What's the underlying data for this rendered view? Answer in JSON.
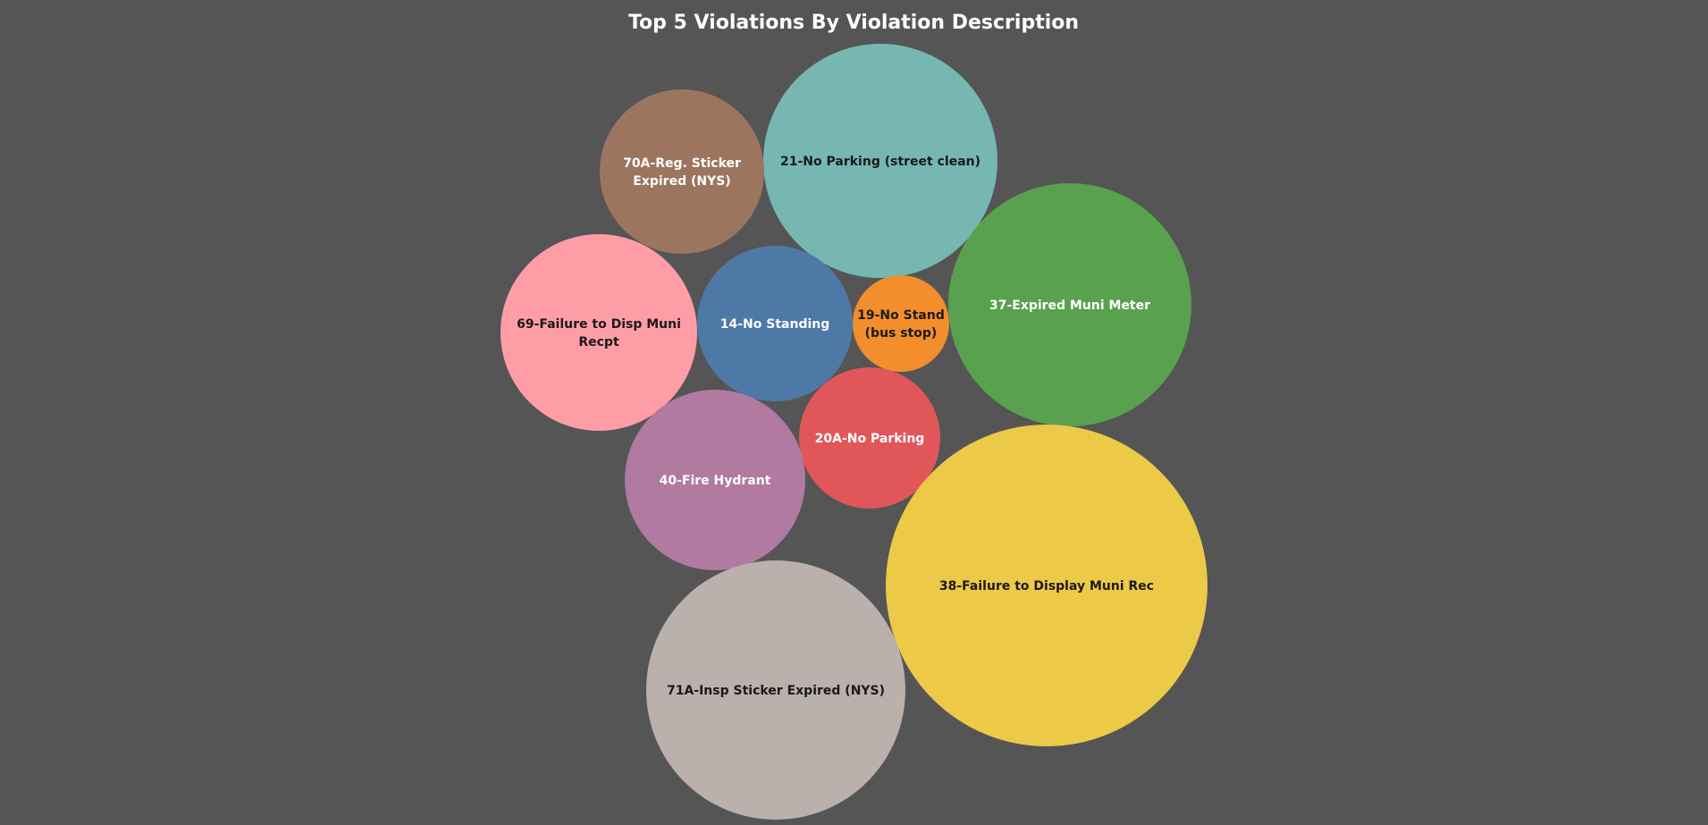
{
  "chart_data": {
    "type": "bubble",
    "title": "Top 5 Violations By Violation Description",
    "title_color": "#ffffff",
    "background": "#555555",
    "bubbles": [
      {
        "label_lines": [
          "21-No Parking (street clean)"
        ],
        "size_rank": 3,
        "color": "#76b7b2",
        "text_color": "#1a1a1a"
      },
      {
        "label_lines": [
          "70A-Reg. Sticker",
          "Expired (NYS)"
        ],
        "size_rank": 7,
        "color": "#9c755f",
        "text_color": "#ffffff"
      },
      {
        "label_lines": [
          "37-Expired Muni Meter"
        ],
        "size_rank": 4,
        "color": "#59a14f",
        "text_color": "#ffffff"
      },
      {
        "label_lines": [
          "69-Failure to Disp Muni",
          "Recpt"
        ],
        "size_rank": 5,
        "color": "#ff9da7",
        "text_color": "#1a1a1a"
      },
      {
        "label_lines": [
          "14-No Standing"
        ],
        "size_rank": 8,
        "color": "#4e79a7",
        "text_color": "#ffffff"
      },
      {
        "label_lines": [
          "19-No Stand",
          "(bus stop)"
        ],
        "size_rank": 10,
        "color": "#f28e2b",
        "text_color": "#1a1a1a"
      },
      {
        "label_lines": [
          "20A-No Parking"
        ],
        "size_rank": 9,
        "color": "#e15759",
        "text_color": "#ffffff"
      },
      {
        "label_lines": [
          "40-Fire Hydrant"
        ],
        "size_rank": 6,
        "color": "#b07aa1",
        "text_color": "#ffffff"
      },
      {
        "label_lines": [
          "38-Failure to Display Muni Rec"
        ],
        "size_rank": 1,
        "color": "#edc948",
        "text_color": "#1a1a1a"
      },
      {
        "label_lines": [
          "71A-Insp Sticker Expired (NYS)"
        ],
        "size_rank": 2,
        "color": "#bab0ac",
        "text_color": "#1a1a1a"
      }
    ]
  }
}
